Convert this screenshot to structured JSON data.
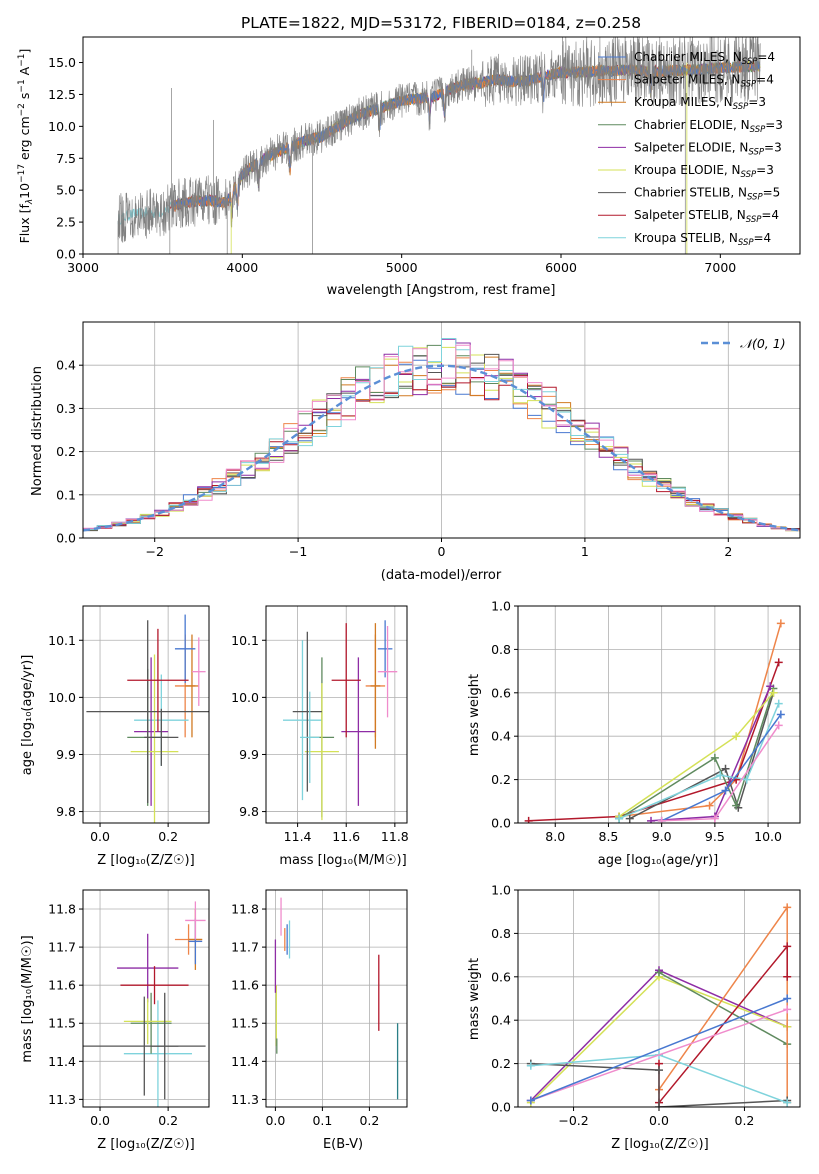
{
  "colors": {
    "CM": "#4878d0",
    "SM": "#ee854a",
    "KM": "#d17a22",
    "CE": "#5f8a5f",
    "SE": "#8e2da5",
    "KE": "#d4e157",
    "CS": "#555555",
    "SS": "#b2182b",
    "KS": "#7fd3dc",
    "pink": "#f08ccc",
    "teal": "#2a7f86",
    "gray": "#808080",
    "normal": "#5b8fd6"
  },
  "chart_data": [
    {
      "type": "line",
      "title": "PLATE=1822, MJD=53172, FIBERID=0184, z=0.258",
      "xlabel": "wavelength [Angstrom, rest frame]",
      "ylabel_parts": {
        "pre": "Flux [f",
        "sub": "λ",
        "mid": "10",
        "sup1": "−17",
        "post1": " erg cm",
        "sup2": "−2",
        "post2": " s",
        "sup3": "−1",
        "post3": " A",
        "sup4": "−1",
        "end": "]"
      },
      "xlim": [
        3000,
        7500
      ],
      "ylim": [
        0,
        17
      ],
      "xticks": [
        "3000",
        "4000",
        "5000",
        "6000",
        "7000"
      ],
      "xtick_values": [
        3000,
        4000,
        5000,
        6000,
        7000
      ],
      "yticks": [
        "0.0",
        "2.5",
        "5.0",
        "7.5",
        "10.0",
        "12.5",
        "15.0"
      ],
      "ytick_values": [
        0,
        2.5,
        5,
        7.5,
        10,
        12.5,
        15
      ],
      "continuum": {
        "x": [
          3220,
          3300,
          3400,
          3500,
          3600,
          3700,
          3800,
          3900,
          4000,
          4100,
          4200,
          4300,
          4400,
          4500,
          4600,
          4700,
          4800,
          4900,
          5000,
          5100,
          5200,
          5300,
          5400,
          5500,
          5600,
          5700,
          5800,
          5900,
          6000,
          6200,
          6400,
          6600,
          6800,
          7000,
          7200
        ],
        "y": [
          2.7,
          3.1,
          3.2,
          3.3,
          3.9,
          4.1,
          4.2,
          4.0,
          6.2,
          7.2,
          7.9,
          8.4,
          8.9,
          9.2,
          10.0,
          10.7,
          11.2,
          11.6,
          12.0,
          12.2,
          12.3,
          12.9,
          13.3,
          13.4,
          13.7,
          13.5,
          13.6,
          14.0,
          14.2,
          14.3,
          14.4,
          14.3,
          14.4,
          14.6,
          14.7
        ]
      },
      "legend": [
        {
          "label": "Chabrier MILES, N",
          "sub": "SSP",
          "post": "=4",
          "color": "CM"
        },
        {
          "label": "Salpeter MILES, N",
          "sub": "SSP",
          "post": "=4",
          "color": "SM"
        },
        {
          "label": "Kroupa MILES, N",
          "sub": "SSP",
          "post": "=3",
          "color": "KM"
        },
        {
          "label": "Chabrier ELODIE, N",
          "sub": "SSP",
          "post": "=3",
          "color": "CE"
        },
        {
          "label": "Salpeter ELODIE, N",
          "sub": "SSP",
          "post": "=3",
          "color": "SE"
        },
        {
          "label": "Kroupa ELODIE, N",
          "sub": "SSP",
          "post": "=3",
          "color": "KE"
        },
        {
          "label": "Chabrier STELIB, N",
          "sub": "SSP",
          "post": "=5",
          "color": "CS"
        },
        {
          "label": "Salpeter STELIB, N",
          "sub": "SSP",
          "post": "=4",
          "color": "SS"
        },
        {
          "label": "Kroupa STELIB, N",
          "sub": "SSP",
          "post": "=4",
          "color": "KS"
        }
      ],
      "legend_position": "top-right"
    },
    {
      "type": "line",
      "xlabel": "(data-model)/error",
      "ylabel": "Normed distribution",
      "xlim": [
        -2.5,
        2.5
      ],
      "ylim": [
        0,
        0.5
      ],
      "xticks": [
        "−2",
        "−1",
        "0",
        "1",
        "2"
      ],
      "xtick_values": [
        -2,
        -1,
        0,
        1,
        2
      ],
      "yticks": [
        "0.0",
        "0.1",
        "0.2",
        "0.3",
        "0.4"
      ],
      "ytick_values": [
        0,
        0.1,
        0.2,
        0.3,
        0.4
      ],
      "bin_width": 0.1,
      "series_colors": [
        "CM",
        "SM",
        "KM",
        "CE",
        "SE",
        "KE",
        "CS",
        "SS",
        "KS",
        "pink"
      ],
      "normal_curve": {
        "label": "𝒩(0, 1)",
        "mean": 0,
        "sd": 1,
        "color": "normal"
      },
      "legend_position": "top-right"
    },
    {
      "type": "scatter",
      "xlabel": "Z [log₁₀(Z/Z☉)]",
      "ylabel": "age  [log₁₀(age/yr)]",
      "xlim": [
        -0.05,
        0.32
      ],
      "ylim": [
        9.78,
        10.16
      ],
      "xticks": [
        "0.0",
        "0.2"
      ],
      "xtick_values": [
        0,
        0.2
      ],
      "yticks": [
        "9.8",
        "9.9",
        "10.0",
        "10.1"
      ],
      "ytick_values": [
        9.8,
        9.9,
        10.0,
        10.1
      ],
      "points": [
        {
          "x": 0.25,
          "y": 10.02,
          "xerr": 0.03,
          "yerr": 0.09,
          "color": "SM"
        },
        {
          "x": 0.27,
          "y": 10.02,
          "xerr": 0.02,
          "yerr": 0.09,
          "color": "KM"
        },
        {
          "x": 0.25,
          "y": 10.085,
          "xerr": 0.03,
          "yerr": 0.06,
          "color": "CM"
        },
        {
          "x": 0.29,
          "y": 10.045,
          "xerr": 0.02,
          "yerr": 0.06,
          "color": "pink"
        },
        {
          "x": 0.18,
          "y": 9.96,
          "xerr": 0.08,
          "yerr": 0.08,
          "color": "KS"
        },
        {
          "x": 0.14,
          "y": 9.93,
          "xerr": 0.06,
          "yerr": 0.12,
          "color": "CE"
        },
        {
          "x": 0.15,
          "y": 9.94,
          "xerr": 0.05,
          "yerr": 0.13,
          "color": "SE"
        },
        {
          "x": 0.16,
          "y": 9.905,
          "xerr": 0.07,
          "yerr": 0.17,
          "color": "KE"
        },
        {
          "x": 0.14,
          "y": 9.975,
          "xerr": 0.18,
          "yerr": 0.16,
          "color": "CS"
        },
        {
          "x": 0.17,
          "y": 10.03,
          "xerr": 0.09,
          "yerr": 0.09,
          "color": "SS"
        },
        {
          "x": 0.18,
          "y": 9.93,
          "xerr": 0.05,
          "yerr": 0.05,
          "color": "CS"
        }
      ]
    },
    {
      "type": "scatter",
      "xlabel": "mass [log₁₀(M/M☉)]",
      "ylabel": "",
      "xlim": [
        11.27,
        11.85
      ],
      "ylim": [
        9.78,
        10.16
      ],
      "xticks": [
        "11.4",
        "11.6",
        "11.8"
      ],
      "xtick_values": [
        11.4,
        11.6,
        11.8
      ],
      "yticks": [
        "9.8",
        "9.9",
        "10.0",
        "10.1"
      ],
      "ytick_values": [
        9.8,
        9.9,
        10.0,
        10.1
      ],
      "points": [
        {
          "x": 11.72,
          "y": 10.02,
          "xerr": 0.04,
          "yerr": 0.09,
          "color": "SM"
        },
        {
          "x": 11.72,
          "y": 10.02,
          "xerr": 0.02,
          "yerr": 0.11,
          "color": "KM"
        },
        {
          "x": 11.76,
          "y": 10.085,
          "xerr": 0.03,
          "yerr": 0.05,
          "color": "CM"
        },
        {
          "x": 11.77,
          "y": 10.045,
          "xerr": 0.04,
          "yerr": 0.08,
          "color": "pink"
        },
        {
          "x": 11.42,
          "y": 9.96,
          "xerr": 0.08,
          "yerr": 0.14,
          "color": "KS"
        },
        {
          "x": 11.5,
          "y": 9.93,
          "xerr": 0.05,
          "yerr": 0.14,
          "color": "CE"
        },
        {
          "x": 11.65,
          "y": 9.94,
          "xerr": 0.07,
          "yerr": 0.13,
          "color": "SE"
        },
        {
          "x": 11.5,
          "y": 9.905,
          "xerr": 0.07,
          "yerr": 0.12,
          "color": "KE"
        },
        {
          "x": 11.44,
          "y": 9.975,
          "xerr": 0.06,
          "yerr": 0.14,
          "color": "CS"
        },
        {
          "x": 11.6,
          "y": 10.03,
          "xerr": 0.06,
          "yerr": 0.1,
          "color": "SS"
        },
        {
          "x": 11.45,
          "y": 9.93,
          "xerr": 0.04,
          "yerr": 0.08,
          "color": "KS"
        }
      ]
    },
    {
      "type": "line",
      "xlabel": "age  [log₁₀(age/yr)]",
      "ylabel": "mass weight",
      "xlim": [
        7.65,
        10.3
      ],
      "ylim": [
        0,
        1
      ],
      "xticks": [
        "8.0",
        "8.5",
        "9.0",
        "9.5",
        "10.0"
      ],
      "xtick_values": [
        8,
        8.5,
        9,
        9.5,
        10
      ],
      "yticks": [
        "0.0",
        "0.2",
        "0.4",
        "0.6",
        "0.8",
        "1.0"
      ],
      "ytick_values": [
        0,
        0.2,
        0.4,
        0.6,
        0.8,
        1.0
      ],
      "series": [
        {
          "color": "SM",
          "x": [
            8.6,
            9.45,
            9.7,
            10.12
          ],
          "y": [
            0.03,
            0.08,
            0.2,
            0.92
          ]
        },
        {
          "color": "SS",
          "x": [
            7.75,
            8.6,
            9.7,
            10.1
          ],
          "y": [
            0.01,
            0.03,
            0.2,
            0.74
          ]
        },
        {
          "color": "CS",
          "x": [
            8.7,
            9.6,
            9.72,
            10.05
          ],
          "y": [
            0.02,
            0.25,
            0.07,
            0.6
          ]
        },
        {
          "color": "CE",
          "x": [
            8.6,
            9.5,
            9.7,
            10.05
          ],
          "y": [
            0.02,
            0.3,
            0.08,
            0.62
          ]
        },
        {
          "color": "SE",
          "x": [
            8.9,
            9.5,
            10.02
          ],
          "y": [
            0.01,
            0.03,
            0.63
          ]
        },
        {
          "color": "KE",
          "x": [
            8.6,
            9.7,
            10.05
          ],
          "y": [
            0.03,
            0.4,
            0.6
          ]
        },
        {
          "color": "KS",
          "x": [
            8.6,
            9.55,
            9.8,
            10.1
          ],
          "y": [
            0.02,
            0.22,
            0.2,
            0.55
          ]
        },
        {
          "color": "CM",
          "x": [
            9.0,
            9.6,
            10.12
          ],
          "y": [
            0.01,
            0.15,
            0.5
          ]
        },
        {
          "color": "pink",
          "x": [
            9.0,
            9.5,
            10.1
          ],
          "y": [
            0.01,
            0.02,
            0.45
          ]
        }
      ]
    },
    {
      "type": "scatter",
      "xlabel": "Z [log₁₀(Z/Z☉)]",
      "ylabel": "mass [log₁₀(M/M☉)]",
      "xlim": [
        -0.05,
        0.32
      ],
      "ylim": [
        11.28,
        11.85
      ],
      "xticks": [
        "0.0",
        "0.2"
      ],
      "xtick_values": [
        0,
        0.2
      ],
      "yticks": [
        "11.3",
        "11.4",
        "11.5",
        "11.6",
        "11.7",
        "11.8"
      ],
      "ytick_values": [
        11.3,
        11.4,
        11.5,
        11.6,
        11.7,
        11.8
      ],
      "points": [
        {
          "x": 0.26,
          "y": 11.72,
          "xerr": 0.04,
          "yerr": 0.04,
          "color": "SM"
        },
        {
          "x": 0.28,
          "y": 11.72,
          "xerr": 0.02,
          "yerr": 0.08,
          "color": "KM"
        },
        {
          "x": 0.28,
          "y": 11.715,
          "xerr": 0.02,
          "yerr": 0.06,
          "color": "CM"
        },
        {
          "x": 0.28,
          "y": 11.77,
          "xerr": 0.03,
          "yerr": 0.05,
          "color": "pink"
        },
        {
          "x": 0.17,
          "y": 11.42,
          "xerr": 0.1,
          "yerr": 0.14,
          "color": "KS"
        },
        {
          "x": 0.15,
          "y": 11.5,
          "xerr": 0.06,
          "yerr": 0.08,
          "color": "CE"
        },
        {
          "x": 0.14,
          "y": 11.645,
          "xerr": 0.09,
          "yerr": 0.09,
          "color": "SE"
        },
        {
          "x": 0.14,
          "y": 11.505,
          "xerr": 0.07,
          "yerr": 0.06,
          "color": "KE"
        },
        {
          "x": 0.13,
          "y": 11.44,
          "xerr": 0.18,
          "yerr": 0.13,
          "color": "CS"
        },
        {
          "x": 0.16,
          "y": 11.6,
          "xerr": 0.1,
          "yerr": 0.05,
          "color": "SS"
        },
        {
          "x": 0.19,
          "y": 11.44,
          "xerr": 0.04,
          "yerr": 0.14,
          "color": "CS"
        }
      ]
    },
    {
      "type": "scatter",
      "xlabel": "E(B-V)",
      "ylabel": "",
      "xlim": [
        -0.02,
        0.28
      ],
      "ylim": [
        11.28,
        11.85
      ],
      "xticks": [
        "0.0",
        "0.1",
        "0.2"
      ],
      "xtick_values": [
        0,
        0.1,
        0.2
      ],
      "yticks": [
        "11.3",
        "11.4",
        "11.5",
        "11.6",
        "11.7",
        "11.8"
      ],
      "ytick_values": [
        11.3,
        11.4,
        11.5,
        11.6,
        11.7,
        11.8
      ],
      "points": [
        {
          "x": 0.02,
          "y": 11.72,
          "xerr": 0,
          "yerr": 0.03,
          "color": "SM"
        },
        {
          "x": 0.025,
          "y": 11.72,
          "xerr": 0,
          "yerr": 0.04,
          "color": "CM"
        },
        {
          "x": 0.012,
          "y": 11.78,
          "xerr": 0,
          "yerr": 0.05,
          "color": "pink"
        },
        {
          "x": 0.03,
          "y": 11.72,
          "xerr": 0,
          "yerr": 0.05,
          "color": "KS"
        },
        {
          "x": 0.002,
          "y": 11.52,
          "xerr": 0,
          "yerr": 0.08,
          "color": "KE"
        },
        {
          "x": 0.0,
          "y": 11.65,
          "xerr": 0,
          "yerr": 0.07,
          "color": "SE"
        },
        {
          "x": 0.003,
          "y": 11.44,
          "xerr": 0,
          "yerr": 0.02,
          "color": "CE"
        },
        {
          "x": 0.22,
          "y": 11.58,
          "xerr": 0,
          "yerr": 0.1,
          "color": "SS"
        },
        {
          "x": 0.26,
          "y": 11.4,
          "xerr": 0,
          "yerr": 0.1,
          "color": "teal"
        }
      ]
    },
    {
      "type": "line",
      "xlabel": "Z [log₁₀(Z/Z☉)]",
      "ylabel": "mass weight",
      "xlim": [
        -0.33,
        0.33
      ],
      "ylim": [
        0,
        1
      ],
      "xticks": [
        "−0.2",
        "0.0",
        "0.2"
      ],
      "xtick_values": [
        -0.2,
        0,
        0.2
      ],
      "yticks": [
        "0.0",
        "0.2",
        "0.4",
        "0.6",
        "0.8",
        "1.0"
      ],
      "ytick_values": [
        0,
        0.2,
        0.4,
        0.6,
        0.8,
        1.0
      ],
      "series": [
        {
          "color": "SE",
          "x": [
            -0.3,
            0.0,
            0.3
          ],
          "y": [
            0.03,
            0.63,
            0.37
          ]
        },
        {
          "color": "KE",
          "x": [
            -0.3,
            0.0,
            0.3
          ],
          "y": [
            0.02,
            0.6,
            0.37
          ]
        },
        {
          "color": "CE",
          "x": [
            0.0,
            0.3
          ],
          "y": [
            0.62,
            0.29
          ]
        },
        {
          "color": "SM",
          "x": [
            0.0,
            0.3,
            0.3
          ],
          "y": [
            0.08,
            0.92,
            0.02
          ]
        },
        {
          "color": "SS",
          "x": [
            0.0,
            0.0,
            0.3,
            0.3
          ],
          "y": [
            0.2,
            0.02,
            0.74,
            0.6
          ]
        },
        {
          "color": "CS",
          "x": [
            -0.3,
            0.0,
            0.0,
            0.3
          ],
          "y": [
            0.2,
            0.17,
            0.0,
            0.03
          ]
        },
        {
          "color": "KS",
          "x": [
            -0.3,
            0.0,
            0.3
          ],
          "y": [
            0.19,
            0.24,
            0.02
          ]
        },
        {
          "color": "pink",
          "x": [
            -0.3,
            0.3
          ],
          "y": [
            0.03,
            0.45
          ]
        },
        {
          "color": "CM",
          "x": [
            -0.3,
            0.3
          ],
          "y": [
            0.03,
            0.5
          ]
        }
      ]
    }
  ]
}
